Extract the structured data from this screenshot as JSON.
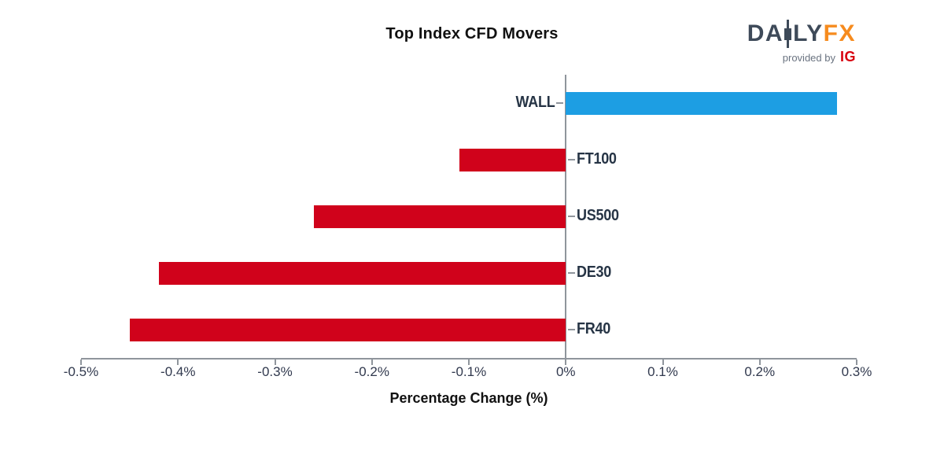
{
  "title": "Top Index CFD Movers",
  "logo": {
    "part1": "DA",
    "part2": "LY",
    "fx": "FX",
    "provided_by": "provided by",
    "ig": "IG"
  },
  "colors": {
    "positive_blue": "#1D9EE3",
    "negative_red": "#D0021B",
    "axis_gray": "#8F959C",
    "label_navy": "#263445",
    "logo_slate": "#3E4A59",
    "logo_orange": "#F68B1E",
    "ig_red": "#D8000F",
    "provided_gray": "#6A7380"
  },
  "chart_data": {
    "type": "bar",
    "orientation": "horizontal",
    "title": "Top Index CFD Movers",
    "categories": [
      "WALL",
      "FT100",
      "US500",
      "DE30",
      "FR40"
    ],
    "values": [
      0.28,
      -0.11,
      -0.26,
      -0.42,
      -0.45
    ],
    "bar_colors": [
      "#1D9EE3",
      "#D0021B",
      "#D0021B",
      "#D0021B",
      "#D0021B"
    ],
    "xlabel": "Percentage Change (%)",
    "ylabel": "",
    "xlim": [
      -0.5,
      0.3
    ],
    "xticks": [
      -0.5,
      -0.4,
      -0.3,
      -0.2,
      -0.1,
      0,
      0.1,
      0.2,
      0.3
    ],
    "xtick_labels": [
      "-0.5%",
      "-0.4%",
      "-0.3%",
      "-0.2%",
      "-0.1%",
      "0%",
      "0.1%",
      "0.2%",
      "0.3%"
    ],
    "grid": false,
    "legend": false
  }
}
